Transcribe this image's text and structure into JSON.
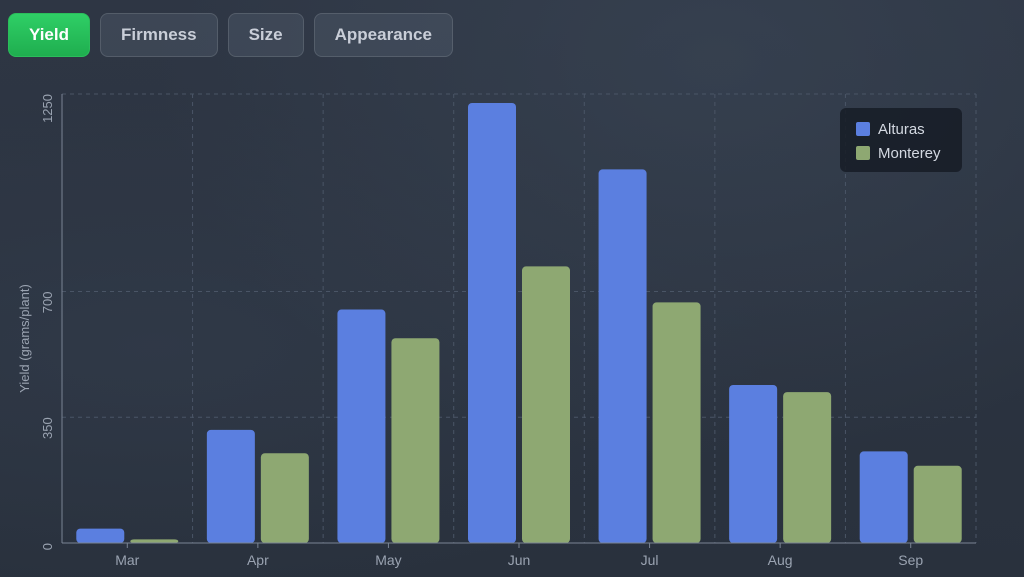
{
  "tabs": [
    {
      "label": "Yield",
      "active": true
    },
    {
      "label": "Firmness",
      "active": false
    },
    {
      "label": "Size",
      "active": false
    },
    {
      "label": "Appearance",
      "active": false
    }
  ],
  "colors": {
    "accent_active_tab": "#22b855",
    "alturas": "#5b7fe0",
    "monterey": "#8ea872",
    "grid": "#4a5566",
    "axis_text": "#9aa3b1"
  },
  "chart_data": {
    "type": "bar",
    "ylabel": "Yield (grams/plant)",
    "xlabel": "",
    "title": "",
    "categories": [
      "Mar",
      "Apr",
      "May",
      "Jun",
      "Jul",
      "Aug",
      "Sep"
    ],
    "series": [
      {
        "name": "Alturas",
        "color": "#5b7fe0",
        "values": [
          40,
          315,
          650,
          1225,
          1040,
          440,
          255
        ]
      },
      {
        "name": "Monterey",
        "color": "#8ea872",
        "values": [
          10,
          250,
          570,
          770,
          670,
          420,
          215
        ]
      }
    ],
    "yticks": [
      0,
      350,
      700,
      1250
    ],
    "ylim": [
      0,
      1250
    ],
    "grid": true,
    "legend_position": "top-right"
  }
}
